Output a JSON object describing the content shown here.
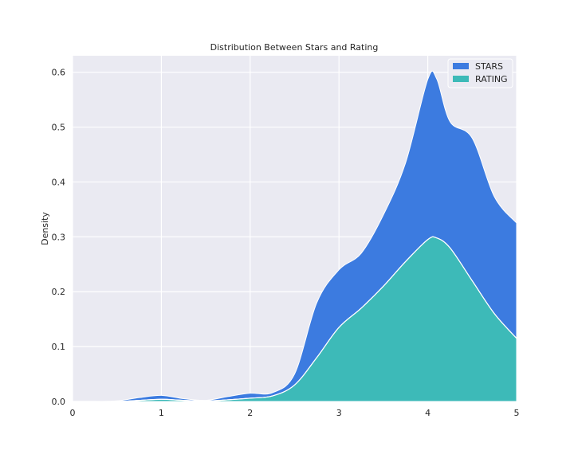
{
  "chart_data": {
    "type": "area",
    "stacked": true,
    "title": "Distribution Between Stars and Rating",
    "xlabel": "",
    "ylabel": "Density",
    "xlim": [
      0,
      5
    ],
    "ylim": [
      0,
      0.63
    ],
    "xticks": [
      "0",
      "1",
      "2",
      "3",
      "4",
      "5"
    ],
    "yticks": [
      "0.0",
      "0.1",
      "0.2",
      "0.3",
      "0.4",
      "0.5",
      "0.6"
    ],
    "grid": true,
    "legend_position": "top-right",
    "background_color": "#EAEAF2",
    "grid_color": "#FFFFFF",
    "x": [
      0.0,
      0.25,
      0.5,
      0.75,
      1.0,
      1.25,
      1.5,
      1.75,
      2.0,
      2.25,
      2.5,
      2.75,
      3.0,
      3.25,
      3.5,
      3.75,
      4.0,
      4.1,
      4.25,
      4.5,
      4.75,
      5.0
    ],
    "series": [
      {
        "name": "RATING",
        "color": "#3DBAB8",
        "values": [
          0.0,
          0.0,
          0.0,
          0.002,
          0.004,
          0.002,
          0.001,
          0.003,
          0.006,
          0.01,
          0.03,
          0.08,
          0.135,
          0.17,
          0.21,
          0.255,
          0.295,
          0.298,
          0.28,
          0.22,
          0.16,
          0.115
        ]
      },
      {
        "name": "STARS",
        "color": "#3C7BE0",
        "values": [
          0.0,
          0.0,
          0.001,
          0.005,
          0.007,
          0.003,
          0.001,
          0.006,
          0.009,
          0.006,
          0.02,
          0.1,
          0.105,
          0.1,
          0.13,
          0.18,
          0.292,
          0.29,
          0.23,
          0.26,
          0.213,
          0.21
        ]
      }
    ],
    "stacked_top": [
      0.0,
      0.0,
      0.001,
      0.007,
      0.011,
      0.005,
      0.002,
      0.009,
      0.015,
      0.016,
      0.05,
      0.18,
      0.24,
      0.27,
      0.34,
      0.435,
      0.587,
      0.588,
      0.51,
      0.48,
      0.373,
      0.325
    ]
  }
}
